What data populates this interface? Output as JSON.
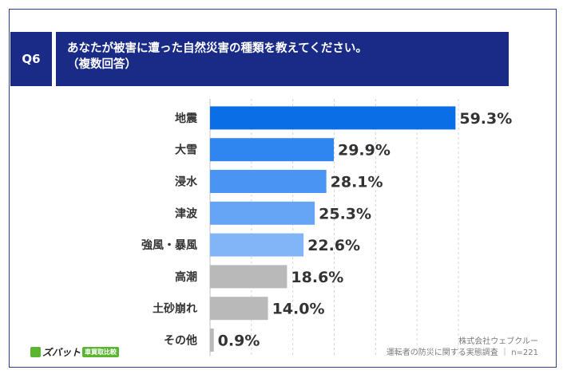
{
  "question": {
    "badge": "Q6",
    "line1": "あなたが被害に遭った自然災害の種類を教えてください。",
    "line2": "（複数回答）"
  },
  "chart_data": {
    "type": "bar",
    "orientation": "horizontal",
    "categories": [
      "地震",
      "大雪",
      "浸水",
      "津波",
      "強風・暴風",
      "高潮",
      "土砂崩れ",
      "その他"
    ],
    "values": [
      59.3,
      29.9,
      28.1,
      25.3,
      22.6,
      18.6,
      14.0,
      0.9
    ],
    "value_labels": [
      "59.3%",
      "29.9%",
      "28.1%",
      "25.3%",
      "22.6%",
      "18.6%",
      "14.0%",
      "0.9%"
    ],
    "colors": [
      "#0a6ee6",
      "#2f86f1",
      "#4a95f3",
      "#66a5f5",
      "#82b5f7",
      "#b9b9b9",
      "#b9b9b9",
      "#b9b9b9"
    ],
    "xlim": [
      0,
      60
    ],
    "grid": "vertical dashed"
  },
  "footer": {
    "company": "株式会社ウェブクルー",
    "survey": "運転者の防災に関する実態調査",
    "n": "n=221"
  },
  "logo": {
    "name": "ズバット",
    "tag": "車買取比較"
  }
}
